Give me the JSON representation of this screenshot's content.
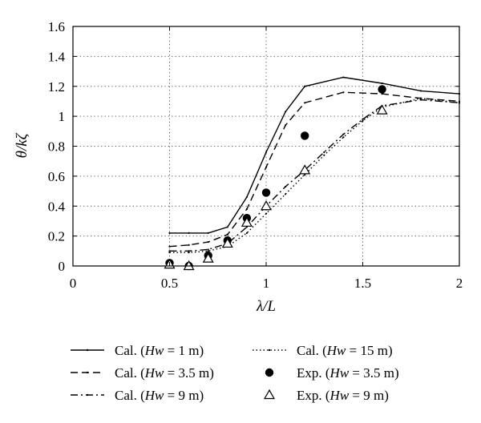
{
  "chart_data": {
    "type": "line",
    "xlabel": "λ/L",
    "ylabel": "θ/kζ",
    "xlim": [
      0,
      2
    ],
    "ylim": [
      0,
      1.6
    ],
    "x_ticks": [
      0,
      0.5,
      1,
      1.5,
      2
    ],
    "x_tick_labels": [
      "0",
      "0.5",
      "1",
      "1.5",
      "2"
    ],
    "y_ticks": [
      0,
      0.2,
      0.4,
      0.6,
      0.8,
      1.0,
      1.2,
      1.4,
      1.6
    ],
    "y_tick_labels": [
      "0",
      "0.2",
      "0.4",
      "0.6",
      "0.8",
      "1",
      "1.2",
      "1.4",
      "1.6"
    ],
    "grid": true,
    "legend_position": "bottom",
    "series": [
      {
        "name": "Cal. (Hw = 1 m)",
        "kind": "line",
        "style": "solid",
        "color": "#000000",
        "x": [
          0.5,
          0.6,
          0.7,
          0.8,
          0.9,
          1.0,
          1.1,
          1.2,
          1.4,
          1.6,
          1.8,
          2.0
        ],
        "y": [
          0.22,
          0.22,
          0.22,
          0.26,
          0.46,
          0.76,
          1.03,
          1.2,
          1.26,
          1.22,
          1.17,
          1.15
        ]
      },
      {
        "name": "Cal. (Hw = 3.5 m)",
        "kind": "line",
        "style": "dashed",
        "color": "#000000",
        "x": [
          0.5,
          0.6,
          0.7,
          0.8,
          0.9,
          1.0,
          1.1,
          1.2,
          1.4,
          1.6,
          1.8,
          2.0
        ],
        "y": [
          0.13,
          0.14,
          0.16,
          0.21,
          0.38,
          0.66,
          0.94,
          1.09,
          1.16,
          1.15,
          1.12,
          1.1
        ]
      },
      {
        "name": "Cal. (Hw = 9 m)",
        "kind": "line",
        "style": "dashdot",
        "color": "#000000",
        "x": [
          0.5,
          0.6,
          0.7,
          0.8,
          0.9,
          1.0,
          1.1,
          1.2,
          1.3,
          1.4,
          1.5,
          1.6,
          1.8,
          2.0
        ],
        "y": [
          0.1,
          0.1,
          0.11,
          0.15,
          0.26,
          0.4,
          0.53,
          0.64,
          0.76,
          0.88,
          0.98,
          1.07,
          1.11,
          1.09
        ]
      },
      {
        "name": "Cal. (Hw = 15 m)",
        "kind": "line",
        "style": "dotted",
        "color": "#000000",
        "x": [
          0.5,
          0.6,
          0.7,
          0.8,
          0.9,
          1.0,
          1.1,
          1.2,
          1.3,
          1.4,
          1.5,
          1.6,
          1.8,
          2.0
        ],
        "y": [
          0.09,
          0.09,
          0.1,
          0.13,
          0.22,
          0.35,
          0.48,
          0.61,
          0.74,
          0.86,
          0.97,
          1.06,
          1.12,
          1.09
        ]
      },
      {
        "name": "Exp. (Hw = 3.5 m)",
        "kind": "scatter",
        "marker": "filled-circle",
        "color": "#000000",
        "x": [
          0.5,
          0.6,
          0.7,
          0.8,
          0.9,
          1.0,
          1.2,
          1.6
        ],
        "y": [
          0.02,
          0.0,
          0.07,
          0.17,
          0.32,
          0.49,
          0.87,
          1.18
        ]
      },
      {
        "name": "Exp. (Hw = 9 m)",
        "kind": "scatter",
        "marker": "open-triangle",
        "color": "#000000",
        "x": [
          0.5,
          0.6,
          0.7,
          0.8,
          0.9,
          1.0,
          1.2,
          1.6
        ],
        "y": [
          0.01,
          0.0,
          0.05,
          0.15,
          0.29,
          0.4,
          0.64,
          1.04
        ]
      }
    ],
    "legend": [
      {
        "prefix": "Cal. (",
        "var": "Hw",
        "suffix": " = 1 m)",
        "series": 0
      },
      {
        "prefix": "Cal. (",
        "var": "Hw",
        "suffix": " = 15 m)",
        "series": 3
      },
      {
        "prefix": "Cal. (",
        "var": "Hw",
        "suffix": " = 3.5 m)",
        "series": 1
      },
      {
        "prefix": "Exp. (",
        "var": "Hw",
        "suffix": " = 3.5 m)",
        "series": 4
      },
      {
        "prefix": "Cal. (",
        "var": "Hw",
        "suffix": " = 9 m)",
        "series": 2
      },
      {
        "prefix": "Exp. (",
        "var": "Hw",
        "suffix": " = 9 m)",
        "series": 5
      }
    ]
  }
}
